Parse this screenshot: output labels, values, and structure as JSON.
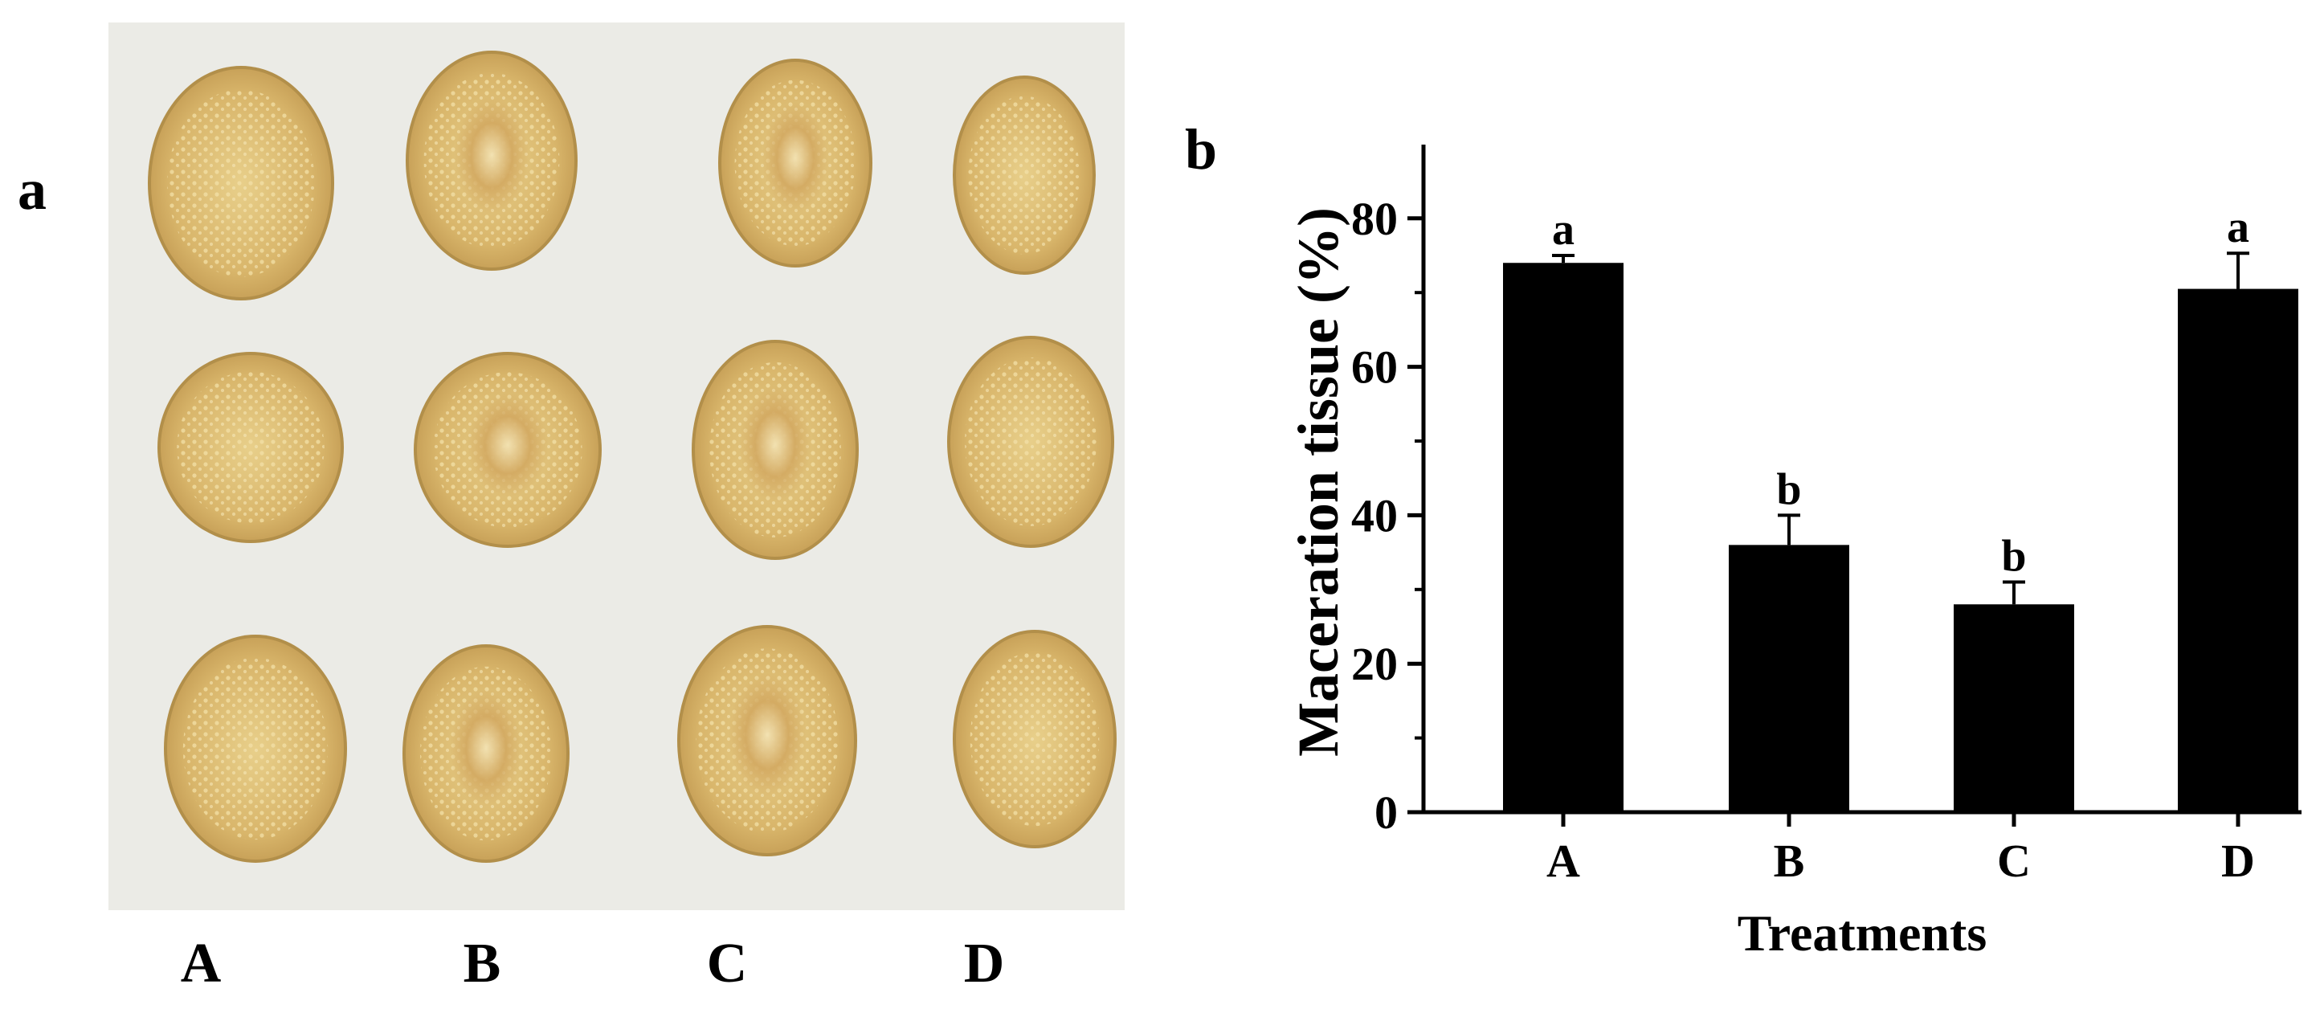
{
  "figure": {
    "panel_a_label": "a",
    "panel_b_label": "b"
  },
  "photo": {
    "columns": [
      "A",
      "B",
      "C",
      "D"
    ],
    "rows": 3,
    "colors": {
      "background": "#ebebe6",
      "slice_fill": "#d8b66a",
      "slice_center": "#e6cc85",
      "slice_edge": "#b28f4a",
      "macerated": "#c79a55"
    }
  },
  "chart_data": {
    "type": "bar",
    "categories": [
      "A",
      "B",
      "C",
      "D"
    ],
    "values": [
      74,
      36,
      28,
      70.5
    ],
    "errors": [
      1,
      4,
      3,
      4.8
    ],
    "significance": [
      "a",
      "b",
      "b",
      "a"
    ],
    "xlabel": "Treatments",
    "ylabel": "Maceration tissue (%)",
    "ylim": [
      0,
      90
    ],
    "yticks": [
      0,
      20,
      40,
      60,
      80
    ],
    "bar_color": "#000000",
    "grid": false
  }
}
